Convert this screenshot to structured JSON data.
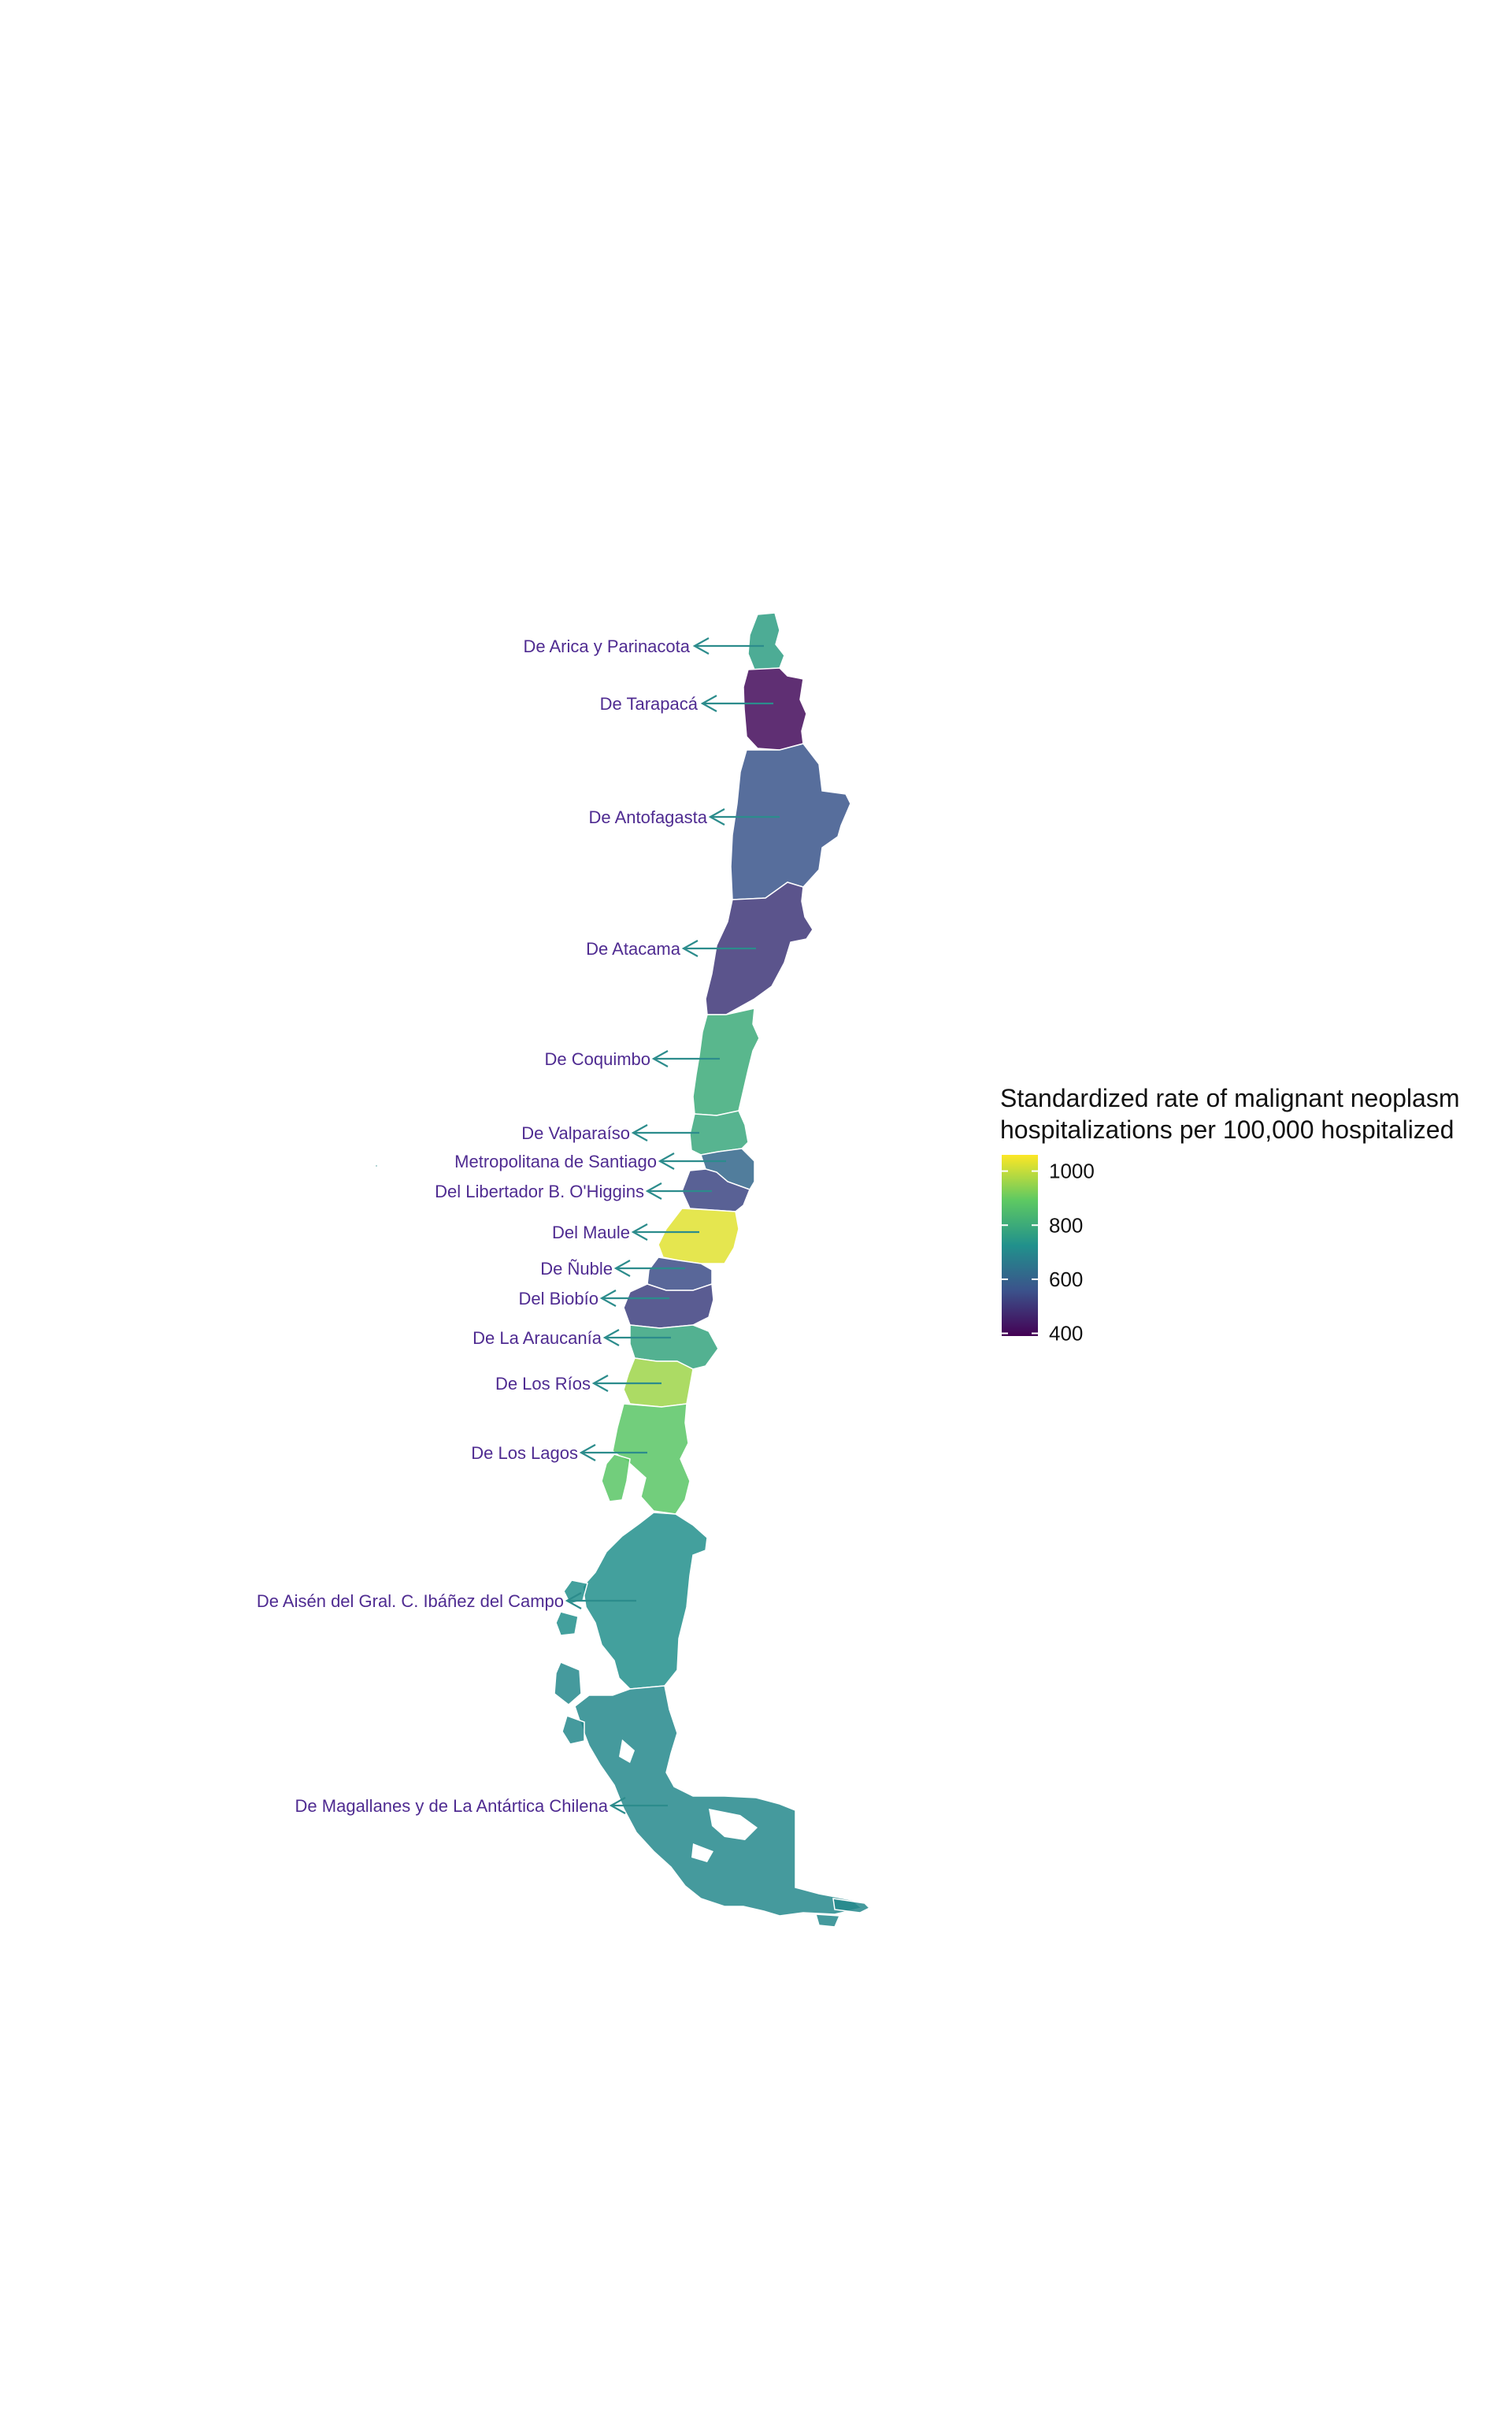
{
  "map": {
    "regions": [
      {
        "id": "arica",
        "label": "De Arica y Parinacota",
        "rate": 760
      },
      {
        "id": "tarapaca",
        "label": "De Tarapacá",
        "rate": 410
      },
      {
        "id": "antofagasta",
        "label": "De Antofagasta",
        "rate": 565
      },
      {
        "id": "atacama",
        "label": "De Atacama",
        "rate": 500
      },
      {
        "id": "coquimbo",
        "label": "De Coquimbo",
        "rate": 800
      },
      {
        "id": "valparaiso",
        "label": "De Valparaíso",
        "rate": 790
      },
      {
        "id": "metropolitana",
        "label": "Metropolitana de Santiago",
        "rate": 610
      },
      {
        "id": "ohiggins",
        "label": "Del Libertador B. O'Higgins",
        "rate": 530
      },
      {
        "id": "maule",
        "label": "Del Maule",
        "rate": 1030
      },
      {
        "id": "nuble",
        "label": "De Ñuble",
        "rate": 545
      },
      {
        "id": "biobio",
        "label": "Del Biobío",
        "rate": 520
      },
      {
        "id": "araucania",
        "label": "De La Araucanía",
        "rate": 780
      },
      {
        "id": "losrios",
        "label": "De Los Ríos",
        "rate": 960
      },
      {
        "id": "loslagos",
        "label": "De Los Lagos",
        "rate": 880
      },
      {
        "id": "aisen",
        "label": "De Aisén del Gral. C. Ibáñez del Campo",
        "rate": 720
      },
      {
        "id": "magallanes",
        "label": "De Magallanes y de La Antártica Chilena",
        "rate": 700
      }
    ]
  },
  "legend": {
    "title_line1": "Standardized rate of malignant neoplasm",
    "title_line2": "hospitalizations per 100,000 hospitalized",
    "ticks": [
      {
        "label": "1000",
        "value": 1000
      },
      {
        "label": "800",
        "value": 800
      },
      {
        "label": "600",
        "value": 600
      },
      {
        "label": "400",
        "value": 400
      }
    ],
    "range": [
      390,
      1060
    ],
    "palette": "viridis"
  }
}
